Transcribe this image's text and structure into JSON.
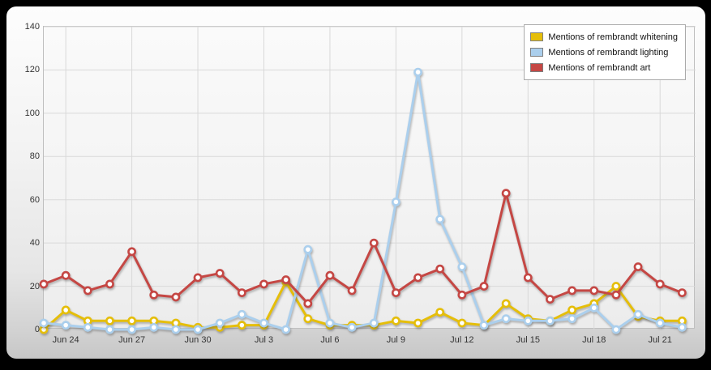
{
  "chart_data": {
    "type": "line",
    "title": "",
    "xlabel": "",
    "ylabel": "",
    "ylim": [
      0,
      140
    ],
    "yticks": [
      0,
      20,
      40,
      60,
      80,
      100,
      120,
      140
    ],
    "grid": true,
    "legend_position": "top-right",
    "x": [
      "Jun 23",
      "Jun 24",
      "Jun 25",
      "Jun 26",
      "Jun 27",
      "Jun 28",
      "Jun 29",
      "Jun 30",
      "Jul 1",
      "Jul 2",
      "Jul 3",
      "Jul 4",
      "Jul 5",
      "Jul 6",
      "Jul 7",
      "Jul 8",
      "Jul 9",
      "Jul 10",
      "Jul 11",
      "Jul 12",
      "Jul 13",
      "Jul 14",
      "Jul 15",
      "Jul 16",
      "Jul 17",
      "Jul 18",
      "Jul 19",
      "Jul 20",
      "Jul 21",
      "Jul 22"
    ],
    "x_ticks": [
      {
        "index": 1,
        "label": "Jun 24"
      },
      {
        "index": 4,
        "label": "Jun 27"
      },
      {
        "index": 7,
        "label": "Jun 30"
      },
      {
        "index": 10,
        "label": "Jul 3"
      },
      {
        "index": 13,
        "label": "Jul 6"
      },
      {
        "index": 16,
        "label": "Jul 9"
      },
      {
        "index": 19,
        "label": "Jul 12"
      },
      {
        "index": 22,
        "label": "Jul 15"
      },
      {
        "index": 25,
        "label": "Jul 18"
      },
      {
        "index": 28,
        "label": "Jul 21"
      }
    ],
    "series": [
      {
        "name": "Mentions of rembrandt whitening",
        "color": "#E5BE0A",
        "values": [
          0,
          9,
          4,
          4,
          4,
          4,
          3,
          1,
          1,
          2,
          2,
          22,
          5,
          2,
          2,
          2,
          4,
          3,
          8,
          3,
          2,
          12,
          5,
          4,
          9,
          12,
          20,
          6,
          4,
          4
        ]
      },
      {
        "name": "Mentions of rembrandt lighting",
        "color": "#ABCFED",
        "values": [
          3,
          2,
          1,
          0,
          0,
          1,
          0,
          0,
          3,
          7,
          3,
          0,
          37,
          3,
          1,
          3,
          59,
          119,
          51,
          29,
          2,
          5,
          4,
          4,
          5,
          10,
          0,
          7,
          3,
          1
        ]
      },
      {
        "name": "Mentions of rembrandt art",
        "color": "#C54744",
        "values": [
          21,
          25,
          18,
          21,
          36,
          16,
          15,
          24,
          26,
          17,
          21,
          23,
          12,
          25,
          18,
          40,
          17,
          24,
          28,
          16,
          20,
          63,
          24,
          14,
          18,
          18,
          16,
          29,
          21,
          17
        ]
      }
    ],
    "marker_fill": "#ffffff",
    "gridline_color": "#d9d9d9",
    "axis_text_color": "#333333"
  }
}
